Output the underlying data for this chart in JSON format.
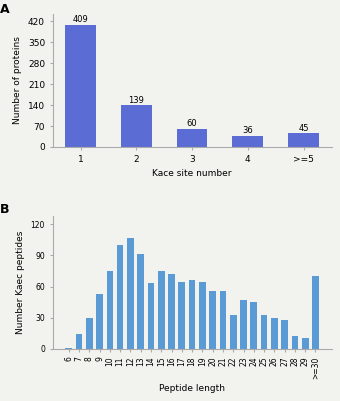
{
  "panel_A": {
    "categories": [
      "1",
      "2",
      "3",
      "4",
      ">=5"
    ],
    "values": [
      409,
      139,
      60,
      36,
      45
    ],
    "xlabel": "Kace site number",
    "ylabel": "Number of proteins",
    "bar_color": "#5b6dd4",
    "yticks": [
      0,
      70,
      140,
      210,
      280,
      350,
      420
    ],
    "ylim": [
      0,
      445
    ],
    "label_fontsize": 6.5,
    "value_label_fontsize": 6
  },
  "panel_B": {
    "categories": [
      "6",
      "7",
      "8",
      "9",
      "10",
      "11",
      "12",
      "13",
      "14",
      "15",
      "16",
      "17",
      "18",
      "19",
      "20",
      "21",
      "22",
      "23",
      "24",
      "25",
      "26",
      "27",
      "28",
      "29",
      ">=30"
    ],
    "values": [
      1,
      14,
      30,
      53,
      75,
      100,
      107,
      91,
      63,
      75,
      72,
      64,
      66,
      64,
      56,
      56,
      33,
      47,
      45,
      33,
      30,
      28,
      12,
      10,
      70
    ],
    "xlabel": "Peptide length",
    "ylabel": "Number Kaec peptides",
    "bar_color": "#5b9bd5",
    "yticks": [
      0,
      30,
      60,
      90,
      120
    ],
    "ylim": [
      0,
      128
    ],
    "label_fontsize": 6.5,
    "tick_fontsize": 5.5
  },
  "bg_color": "#f2f2ee",
  "panel_label_fontsize": 9
}
